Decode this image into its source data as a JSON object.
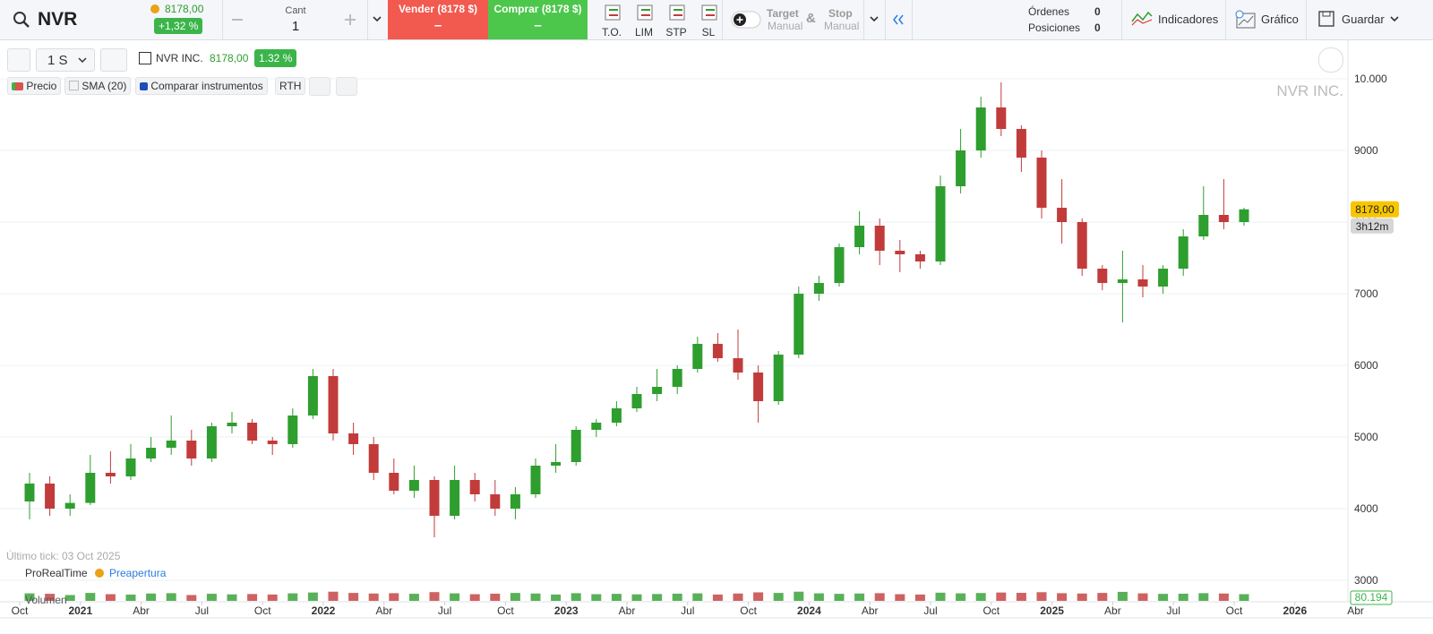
{
  "toolbar": {
    "symbol": "NVR",
    "price": "8178,00",
    "change": "+1,32 %",
    "qty_label": "Cant",
    "qty": "1",
    "sell": "Vender (8178 $)",
    "sell_value": "–",
    "buy": "Comprar (8178 $)",
    "buy_value": "–",
    "order_types": [
      "T.O.",
      "LIM",
      "STP",
      "SL"
    ],
    "target": "Target",
    "target_mode": "Manual",
    "amp": "&",
    "stop": "Stop",
    "stop_mode": "Manual",
    "orders_label": "Órdenes",
    "orders": "0",
    "positions_label": "Posiciones",
    "positions": "0",
    "indicators": "Indicadores",
    "chart": "Gráfico",
    "save": "Guardar"
  },
  "chart_toolbar": {
    "period": "1 S",
    "instrument": "NVR INC.",
    "price": "8178,00",
    "change": "1.32 %",
    "price_label": "Precio",
    "sma": "SMA (20)",
    "compare": "Comparar instrumentos",
    "rth": "RTH"
  },
  "footer": {
    "last_tick": "Último tick: 03 Oct 2025",
    "brand": "ProRealTime",
    "session": "Preapertura"
  },
  "chart_data": {
    "type": "candlestick",
    "watermark": "NVR INC.",
    "up_color": "#2e9e2e",
    "down_color": "#c23b3b",
    "grid": true,
    "x": [
      0,
      1,
      2,
      3,
      4,
      5,
      6,
      7,
      8,
      9,
      10,
      11,
      12,
      13,
      14,
      15,
      16,
      17,
      18,
      19,
      20,
      21,
      22,
      23,
      24,
      25,
      26,
      27,
      28,
      29,
      30,
      31,
      32,
      33,
      34,
      35,
      36,
      37,
      38,
      39,
      40,
      41,
      42,
      43,
      44,
      45,
      46,
      47,
      48,
      49,
      50,
      51,
      52,
      53,
      54,
      55,
      56,
      57,
      58,
      59,
      60
    ],
    "open": [
      4100,
      4350,
      4000,
      4080,
      4500,
      4450,
      4700,
      4850,
      4950,
      4700,
      5150,
      5200,
      4950,
      4900,
      5300,
      5850,
      5050,
      4900,
      4500,
      4250,
      4400,
      3900,
      4400,
      4200,
      4000,
      4200,
      4600,
      4650,
      5100,
      5200,
      5400,
      5600,
      5700,
      5950,
      6300,
      6100,
      5900,
      5500,
      6150,
      7000,
      7150,
      7650,
      7950,
      7600,
      7550,
      7450,
      8500,
      9000,
      9600,
      9300,
      8900,
      8200,
      8000,
      7350,
      7150,
      7200,
      7100,
      7350,
      7800,
      8100,
      8000
    ],
    "high": [
      4500,
      4450,
      4200,
      4750,
      4800,
      4900,
      5000,
      5300,
      5100,
      5200,
      5350,
      5250,
      5000,
      5400,
      5950,
      5950,
      5200,
      5000,
      4700,
      4600,
      4450,
      4600,
      4500,
      4400,
      4300,
      4700,
      4900,
      5150,
      5250,
      5500,
      5700,
      5950,
      6000,
      6400,
      6450,
      6500,
      6000,
      6200,
      7100,
      7250,
      7700,
      8150,
      8050,
      7750,
      7600,
      8650,
      9300,
      9750,
      9950,
      9350,
      9000,
      8600,
      8050,
      7400,
      7600,
      7400,
      7400,
      7900,
      8500,
      8600,
      8200
    ],
    "low": [
      3850,
      3900,
      3900,
      4050,
      4350,
      4400,
      4650,
      4750,
      4600,
      4650,
      5050,
      4900,
      4750,
      4850,
      5250,
      4950,
      4750,
      4400,
      4200,
      4150,
      3600,
      3850,
      4100,
      3900,
      3850,
      4150,
      4500,
      4600,
      5000,
      5150,
      5350,
      5500,
      5600,
      5900,
      6050,
      5800,
      5200,
      5450,
      6100,
      6900,
      7100,
      7550,
      7400,
      7300,
      7350,
      7400,
      8400,
      8900,
      9200,
      8700,
      8050,
      7700,
      7250,
      7050,
      6600,
      6950,
      7000,
      7250,
      7750,
      7900,
      7950
    ],
    "close": [
      4350,
      4000,
      4080,
      4500,
      4450,
      4700,
      4850,
      4950,
      4700,
      5150,
      5200,
      4950,
      4900,
      5300,
      5850,
      5050,
      4900,
      4500,
      4250,
      4400,
      3900,
      4400,
      4200,
      4000,
      4200,
      4600,
      4650,
      5100,
      5200,
      5400,
      5600,
      5700,
      5950,
      6300,
      6100,
      5900,
      5500,
      6150,
      7000,
      7150,
      7650,
      7950,
      7600,
      7550,
      7450,
      8500,
      9000,
      9600,
      9300,
      8900,
      8200,
      8000,
      7350,
      7150,
      7200,
      7100,
      7350,
      7800,
      8100,
      8000,
      8178
    ],
    "volume_name": "Volumen",
    "volume": [
      90000,
      85000,
      70000,
      95000,
      80000,
      75000,
      88000,
      92000,
      70000,
      85000,
      78000,
      82000,
      76000,
      90000,
      100000,
      110000,
      95000,
      88000,
      92000,
      85000,
      105000,
      90000,
      80000,
      86000,
      95000,
      88000,
      76000,
      92000,
      80000,
      84000,
      78000,
      82000,
      86000,
      90000,
      76000,
      88000,
      102000,
      95000,
      110000,
      90000,
      84000,
      88000,
      92000,
      80000,
      76000,
      98000,
      90000,
      94000,
      100000,
      96000,
      104000,
      92000,
      88000,
      95000,
      108000,
      90000,
      84000,
      86000,
      92000,
      88000,
      80194
    ],
    "volume_last": {
      "value": 80194,
      "label": "80.194"
    },
    "volume_lim": [
      0,
      150000
    ],
    "xlim": [
      0,
      66
    ],
    "xticks": [
      {
        "value": 0,
        "label": "Oct"
      },
      {
        "value": 3,
        "label": "2021"
      },
      {
        "value": 6,
        "label": "Abr"
      },
      {
        "value": 9,
        "label": "Jul"
      },
      {
        "value": 12,
        "label": "Oct"
      },
      {
        "value": 15,
        "label": "2022"
      },
      {
        "value": 18,
        "label": "Abr"
      },
      {
        "value": 21,
        "label": "Jul"
      },
      {
        "value": 24,
        "label": "Oct"
      },
      {
        "value": 27,
        "label": "2023"
      },
      {
        "value": 30,
        "label": "Abr"
      },
      {
        "value": 33,
        "label": "Jul"
      },
      {
        "value": 36,
        "label": "Oct"
      },
      {
        "value": 39,
        "label": "2024"
      },
      {
        "value": 42,
        "label": "Abr"
      },
      {
        "value": 45,
        "label": "Jul"
      },
      {
        "value": 48,
        "label": "Oct"
      },
      {
        "value": 51,
        "label": "2025"
      },
      {
        "value": 54,
        "label": "Abr"
      },
      {
        "value": 57,
        "label": "Jul"
      },
      {
        "value": 60,
        "label": "Oct"
      },
      {
        "value": 63,
        "label": "2026"
      },
      {
        "value": 66,
        "label": "Abr"
      }
    ],
    "ylim": [
      2900,
      10150
    ],
    "yticks": [
      3000,
      4000,
      5000,
      6000,
      7000,
      8000,
      9000,
      {
        "value": 10000,
        "label": "10.000"
      }
    ],
    "last_price": {
      "value": 8178,
      "label": "8178,00"
    },
    "countdown": "3h12m"
  }
}
